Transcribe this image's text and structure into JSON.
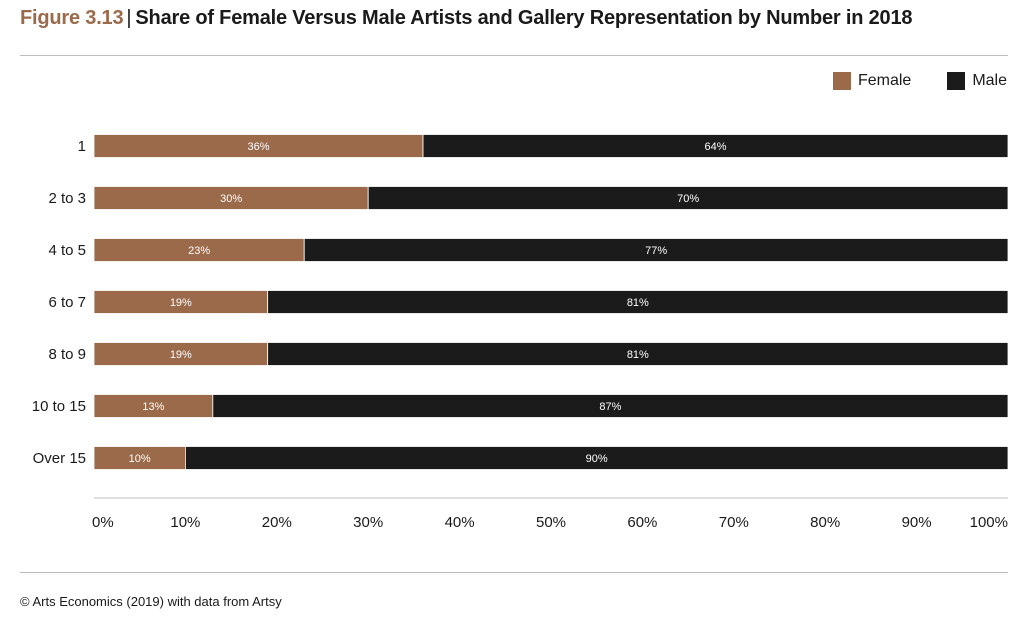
{
  "header": {
    "figure_label": "Figure 3.13",
    "title": "Share of Female Versus Male Artists and Gallery Representation by Number in 2018"
  },
  "footer": {
    "source": "© Arts Economics (2019) with data from Artsy"
  },
  "chart_data": {
    "type": "bar",
    "orientation": "horizontal",
    "stacked": true,
    "title": "Share of Female Versus Male Artists and Gallery Representation by Number in 2018",
    "categories": [
      "1",
      "2 to 3",
      "4 to 5",
      "6 to 7",
      "8 to 9",
      "10 to 15",
      "Over 15"
    ],
    "series": [
      {
        "name": "Female",
        "color": "#9a6a4b",
        "values": [
          36,
          30,
          23,
          19,
          19,
          13,
          10
        ],
        "labels": [
          "36%",
          "30%",
          "23%",
          "19%",
          "19%",
          "13%",
          "10%"
        ]
      },
      {
        "name": "Male",
        "color": "#1b1b1b",
        "values": [
          64,
          70,
          77,
          81,
          81,
          87,
          90
        ],
        "labels": [
          "64%",
          "70%",
          "77%",
          "81%",
          "81%",
          "87%",
          "90%"
        ]
      }
    ],
    "xlim": [
      0,
      100
    ],
    "x_ticks": [
      "0%",
      "10%",
      "20%",
      "30%",
      "40%",
      "50%",
      "60%",
      "70%",
      "80%",
      "90%",
      "100%"
    ],
    "xlabel": "",
    "ylabel": "",
    "grid": false,
    "legend_position": "top-right"
  }
}
